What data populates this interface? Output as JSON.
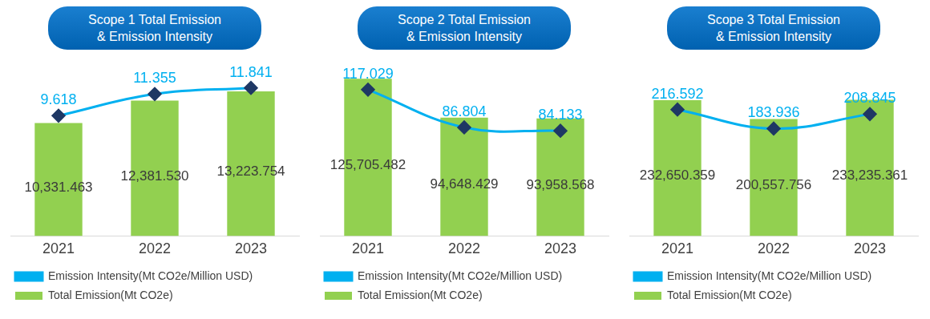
{
  "chart_data": [
    {
      "type": "bar",
      "title": "Scope 1 Total Emission\n& Emission Intensity",
      "categories": [
        "2021",
        "2022",
        "2023"
      ],
      "series": [
        {
          "name": "Total Emission(Mt CO2e)",
          "type": "bar",
          "color": "#92d050",
          "values": [
            10331.463,
            12381.53,
            13223.754
          ],
          "value_labels": [
            "10,331.463",
            "12,381.530",
            "13,223.754"
          ]
        },
        {
          "name": "Emission Intensity(Mt CO2e/Million USD)",
          "type": "line",
          "color": "#00b0f0",
          "axis": "y2",
          "marker": "diamond",
          "values": [
            9.618,
            11.355,
            11.841
          ]
        }
      ],
      "data_labels": true,
      "legend": "bottom",
      "grid": false,
      "tick_labels": "x"
    },
    {
      "type": "bar",
      "title": "Scope 2 Total Emission\n& Emission Intensity",
      "categories": [
        "2021",
        "2022",
        "2023"
      ],
      "series": [
        {
          "name": "Total Emission(Mt CO2e)",
          "type": "bar",
          "color": "#92d050",
          "values": [
            125705.482,
            94648.429,
            93958.568
          ],
          "value_labels": [
            "125,705.482",
            "94,648.429",
            "93,958.568"
          ]
        },
        {
          "name": "Emission Intensity(Mt CO2e/Million USD)",
          "type": "line",
          "color": "#00b0f0",
          "axis": "y2",
          "marker": "diamond",
          "values": [
            117.029,
            86.804,
            84.133
          ]
        }
      ],
      "data_labels": true,
      "legend": "bottom",
      "grid": false,
      "tick_labels": "x"
    },
    {
      "type": "bar",
      "title": "Scope 3 Total Emission\n& Emission Intensity",
      "categories": [
        "2021",
        "2022",
        "2023"
      ],
      "series": [
        {
          "name": "Total Emission(Mt CO2e)",
          "type": "bar",
          "color": "#92d050",
          "values": [
            232650.359,
            200557.756,
            233235.361
          ],
          "value_labels": [
            "232,650.359",
            "200,557.756",
            "233,235.361"
          ]
        },
        {
          "name": "Emission Intensity(Mt CO2e/Million USD)",
          "type": "line",
          "color": "#00b0f0",
          "axis": "y2",
          "marker": "diamond",
          "values": [
            216.592,
            183.936,
            208.845
          ]
        }
      ],
      "data_labels": true,
      "legend": "bottom",
      "grid": false,
      "tick_labels": "x"
    }
  ]
}
